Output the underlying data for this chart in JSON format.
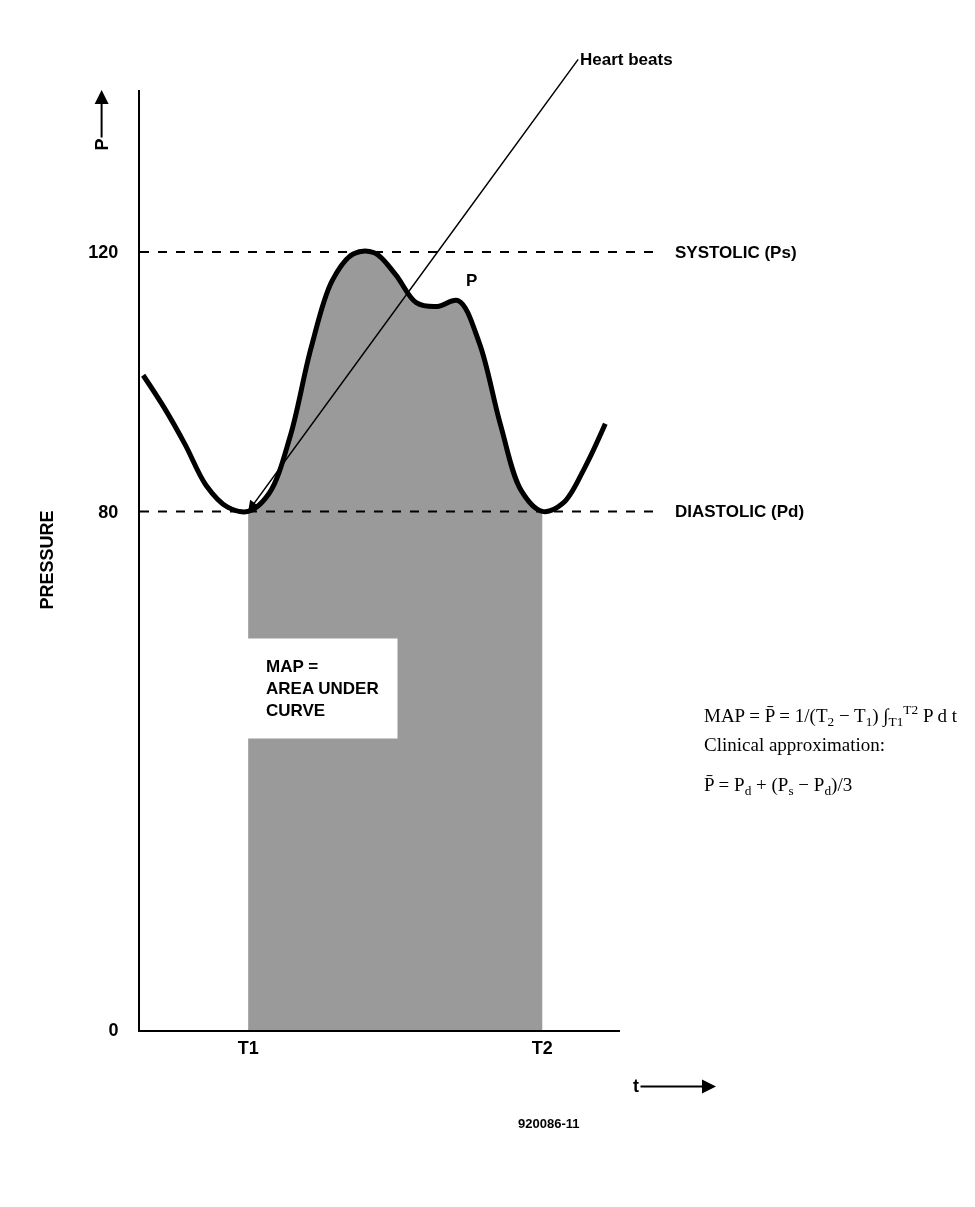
{
  "chart_data": {
    "type": "line",
    "xlabel": "t",
    "ylabel": "PRESSURE",
    "categories": [
      null,
      null,
      null,
      null,
      null,
      "T1",
      null,
      null,
      null,
      null,
      null,
      null,
      null,
      null,
      null,
      null,
      null,
      null,
      null,
      "T2",
      null,
      null,
      null
    ],
    "ylim": [
      0,
      145
    ],
    "yticks": [
      0,
      80,
      120
    ],
    "series": [
      {
        "type": "area",
        "color": "#9a9a9a",
        "values": [
          null,
          null,
          null,
          null,
          null,
          80,
          82.8,
          91.6,
          105.3,
          115.6,
          119.7,
          119.9,
          116.6,
          112.2,
          111.6,
          112.5,
          106,
          93.5,
          83.2,
          80,
          null,
          null,
          null
        ]
      },
      {
        "color": "#000000",
        "values": [
          101,
          96,
          90.3,
          84,
          80.7,
          80,
          82.8,
          91.6,
          105.3,
          115.6,
          119.7,
          119.9,
          116.6,
          112.2,
          111.6,
          112.5,
          106,
          93.5,
          83.2,
          80,
          81.3,
          86.6,
          93.5
        ]
      }
    ],
    "ref_lines": [
      {
        "axis": "y",
        "value": 120,
        "label": "SYSTOLIC (Ps)",
        "color": "#000000",
        "line_style": "dashed"
      },
      {
        "axis": "y",
        "value": 80,
        "label": "DIASTOLIC (Pd)",
        "color": "#000000",
        "line_style": "dashed"
      }
    ],
    "annotations": [
      {
        "text": "Heart beats",
        "x": "T1",
        "y": 80
      },
      "P",
      "P",
      "MAP =\nAREA UNDER\nCURVE",
      "MAP = P̄ = 1/(T$_{2}$ − T$_{1}$) ∫$_{T1}$$^{T2}$ P d t",
      "Clinical approximation:",
      "P̄ = P$_{d}$ + (P$_{s}$ − P$_{d}$)/3",
      "920086-11"
    ]
  }
}
